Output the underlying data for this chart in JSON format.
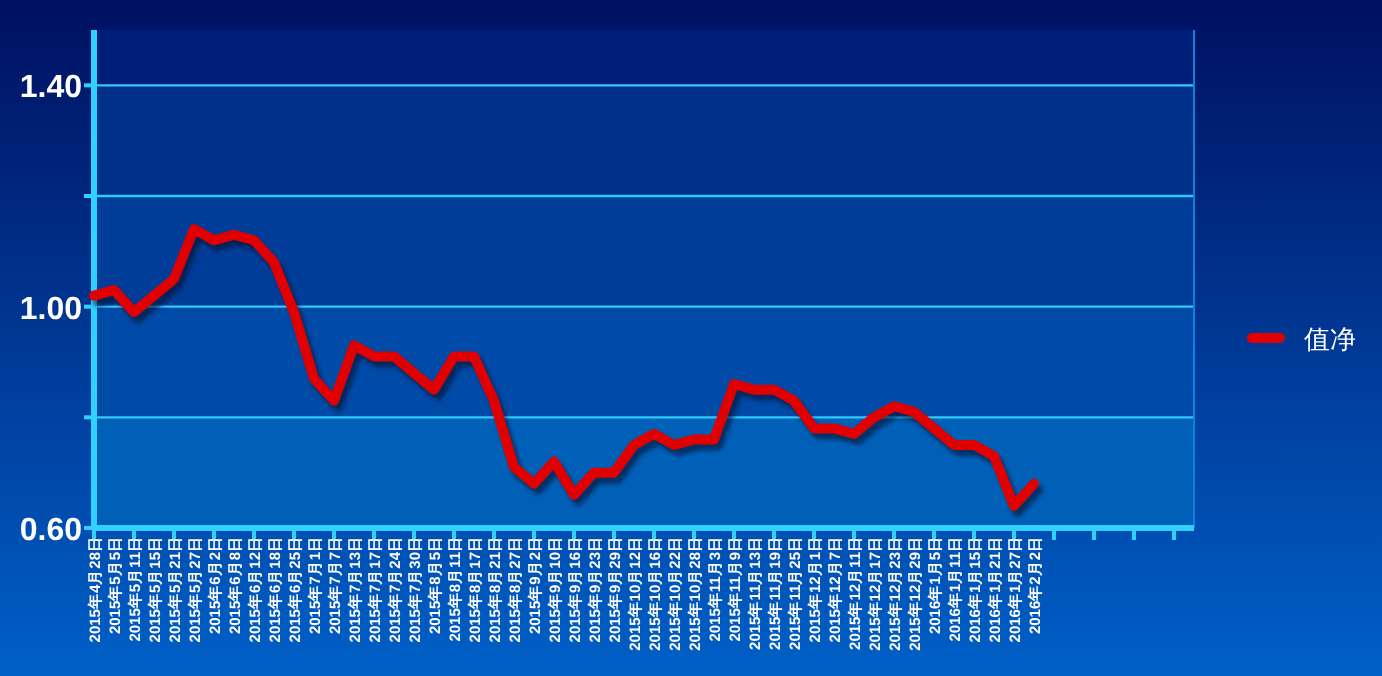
{
  "chart_data": {
    "type": "line",
    "categories": [
      "2015年4月28日",
      "2015年5月5日",
      "2015年5月11日",
      "2015年5月15日",
      "2015年5月21日",
      "2015年5月27日",
      "2015年6月2日",
      "2015年6月8日",
      "2015年6月12日",
      "2015年6月18日",
      "2015年6月25日",
      "2015年7月1日",
      "2015年7月7日",
      "2015年7月13日",
      "2015年7月17日",
      "2015年7月24日",
      "2015年7月30日",
      "2015年8月5日",
      "2015年8月11日",
      "2015年8月17日",
      "2015年8月21日",
      "2015年8月27日",
      "2015年9月2日",
      "2015年9月10日",
      "2015年9月16日",
      "2015年9月23日",
      "2015年9月29日",
      "2015年10月12日",
      "2015年10月16日",
      "2015年10月22日",
      "2015年10月28日",
      "2015年11月3日",
      "2015年11月9日",
      "2015年11月13日",
      "2015年11月19日",
      "2015年11月25日",
      "2015年12月1日",
      "2015年12月7日",
      "2015年12月11日",
      "2015年12月17日",
      "2015年12月23日",
      "2015年12月29日",
      "2016年1月5日",
      "2016年1月11日",
      "2016年1月15日",
      "2016年1月21日",
      "2016年1月27日",
      "2016年2月2日",
      null,
      null,
      null,
      null,
      null,
      null,
      null,
      null
    ],
    "series": [
      {
        "name": "值净",
        "color": "#e00000",
        "values": [
          1.02,
          1.03,
          0.99,
          1.02,
          1.05,
          1.14,
          1.12,
          1.13,
          1.12,
          1.08,
          0.99,
          0.87,
          0.83,
          0.93,
          0.91,
          0.91,
          0.88,
          0.85,
          0.91,
          0.91,
          0.83,
          0.71,
          0.68,
          0.72,
          0.66,
          0.7,
          0.7,
          0.75,
          0.77,
          0.75,
          0.76,
          0.76,
          0.86,
          0.85,
          0.85,
          0.83,
          0.78,
          0.78,
          0.77,
          0.8,
          0.82,
          0.81,
          0.78,
          0.75,
          0.75,
          0.73,
          0.64,
          0.68,
          null,
          null,
          null,
          null,
          null,
          null,
          null,
          null
        ]
      }
    ],
    "ylim": [
      0.6,
      1.5
    ],
    "yticks": [
      {
        "value": 0.6,
        "label": "0.60"
      },
      {
        "value": 0.8,
        "label": null
      },
      {
        "value": 1.0,
        "label": "1.00"
      },
      {
        "value": 1.2,
        "label": null
      },
      {
        "value": 1.4,
        "label": "1.40"
      }
    ],
    "grid": "y",
    "legend": "right",
    "marker": "none",
    "line_style": "solid"
  }
}
